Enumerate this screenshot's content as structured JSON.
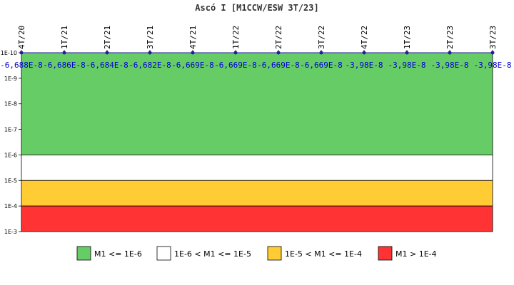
{
  "chart_data": {
    "type": "line",
    "title": "Ascó I [M1CCW/ESW 3T/23]",
    "y_scale": "log",
    "y_inverted": true,
    "ylim": [
      1e-10,
      0.001
    ],
    "y_ticks": [
      "1E-10",
      "1E-9",
      "1E-8",
      "1E-7",
      "1E-6",
      "1E-5",
      "1E-4",
      "1E-3"
    ],
    "x": [
      "4T/20",
      "1T/21",
      "2T/21",
      "3T/21",
      "4T/21",
      "1T/22",
      "2T/22",
      "3T/22",
      "4T/22",
      "1T/23",
      "2T/23",
      "3T/23"
    ],
    "series": [
      {
        "values": [
          -6.688e-08,
          -6.686e-08,
          -6.684e-08,
          -6.682e-08,
          -6.669e-08,
          -6.669e-08,
          -6.669e-08,
          -6.669e-08,
          -3.98e-08,
          -3.98e-08,
          -3.98e-08,
          -3.98e-08
        ],
        "labels": [
          "-6,688E-8",
          "-6,686E-8",
          "-6,684E-8",
          "-6,682E-8",
          "-6,669E-8",
          "-6,669E-8",
          "-6,669E-8",
          "-6,669E-8",
          "-3,98E-8",
          "-3,98E-8",
          "-3,98E-8",
          "-3,98E-8"
        ],
        "color": "#1f1f99"
      }
    ],
    "bands": [
      {
        "from": 1e-10,
        "to": 1e-06,
        "color": "#66cc66",
        "label": "M1 <= 1E-6"
      },
      {
        "from": 1e-06,
        "to": 1e-05,
        "color": "#ffffff",
        "label": "1E-6 < M1 <= 1E-5"
      },
      {
        "from": 1e-05,
        "to": 0.0001,
        "color": "#ffcc33",
        "label": "1E-5 < M1 <= 1E-4"
      },
      {
        "from": 0.0001,
        "to": 0.001,
        "color": "#ff3333",
        "label": "M1 > 1E-4"
      }
    ],
    "legend_position": "bottom",
    "grid": false
  }
}
